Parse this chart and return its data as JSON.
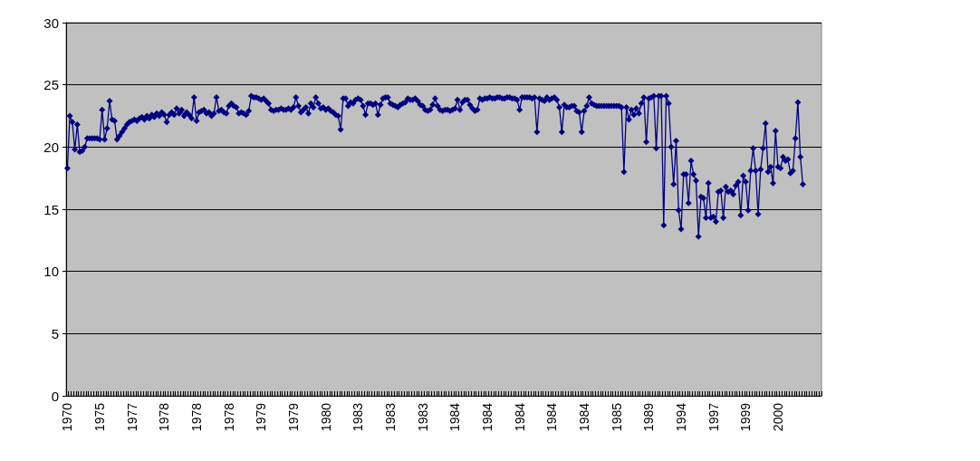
{
  "chart_data": {
    "type": "line",
    "categories": [
      "1970",
      null,
      null,
      null,
      null,
      null,
      null,
      null,
      null,
      null,
      null,
      null,
      null,
      "1975",
      null,
      null,
      null,
      null,
      null,
      null,
      null,
      null,
      null,
      null,
      null,
      null,
      "1977",
      null,
      null,
      null,
      null,
      null,
      null,
      null,
      null,
      null,
      null,
      null,
      null,
      "1978",
      null,
      null,
      null,
      null,
      null,
      null,
      null,
      null,
      null,
      null,
      null,
      null,
      "1978",
      null,
      null,
      null,
      null,
      null,
      null,
      null,
      null,
      null,
      null,
      null,
      null,
      "1978",
      null,
      null,
      null,
      null,
      null,
      null,
      null,
      null,
      null,
      null,
      null,
      null,
      "1979",
      null,
      null,
      null,
      null,
      null,
      null,
      null,
      null,
      null,
      null,
      null,
      null,
      "1979",
      null,
      null,
      null,
      null,
      null,
      null,
      null,
      null,
      null,
      null,
      null,
      null,
      "1980",
      null,
      null,
      null,
      null,
      null,
      null,
      null,
      null,
      null,
      null,
      null,
      null,
      "1983",
      null,
      null,
      null,
      null,
      null,
      null,
      null,
      null,
      null,
      null,
      null,
      null,
      "1983",
      null,
      null,
      null,
      null,
      null,
      null,
      null,
      null,
      null,
      null,
      null,
      null,
      "1983",
      null,
      null,
      null,
      null,
      null,
      null,
      null,
      null,
      null,
      null,
      null,
      null,
      "1984",
      null,
      null,
      null,
      null,
      null,
      null,
      null,
      null,
      null,
      null,
      null,
      null,
      "1984",
      null,
      null,
      null,
      null,
      null,
      null,
      null,
      null,
      null,
      null,
      null,
      null,
      "1984",
      null,
      null,
      null,
      null,
      null,
      null,
      null,
      null,
      null,
      null,
      null,
      null,
      "1984",
      null,
      null,
      null,
      null,
      null,
      null,
      null,
      null,
      null,
      null,
      null,
      null,
      "1984",
      null,
      null,
      null,
      null,
      null,
      null,
      null,
      null,
      null,
      null,
      null,
      null,
      "1985",
      null,
      null,
      null,
      null,
      null,
      null,
      null,
      null,
      null,
      null,
      null,
      null,
      "1989",
      null,
      null,
      null,
      null,
      null,
      null,
      null,
      null,
      null,
      null,
      null,
      null,
      "1994",
      null,
      null,
      null,
      null,
      null,
      null,
      null,
      null,
      null,
      null,
      null,
      null,
      "1997",
      null,
      null,
      null,
      null,
      null,
      null,
      null,
      null,
      null,
      null,
      null,
      null,
      "1999",
      null,
      null,
      null,
      null,
      null,
      null,
      null,
      null,
      null,
      null,
      null,
      null,
      "2000",
      null,
      null,
      null,
      null,
      null,
      null,
      null,
      null,
      null,
      null,
      null,
      null,
      null,
      null,
      null,
      null,
      null
    ],
    "values": [
      18.3,
      22.5,
      22.0,
      19.8,
      21.8,
      19.6,
      19.7,
      20.0,
      20.7,
      20.7,
      20.7,
      20.7,
      20.7,
      20.6,
      23.0,
      20.6,
      21.5,
      23.7,
      22.2,
      22.1,
      20.6,
      20.9,
      21.2,
      21.5,
      21.8,
      22.0,
      22.1,
      22.2,
      22.1,
      22.3,
      22.4,
      22.2,
      22.5,
      22.3,
      22.6,
      22.4,
      22.7,
      22.5,
      22.8,
      22.6,
      22.0,
      22.6,
      22.8,
      22.6,
      23.1,
      22.7,
      23.0,
      22.5,
      22.8,
      22.6,
      22.3,
      24.0,
      22.1,
      22.8,
      22.9,
      23.0,
      22.7,
      22.8,
      22.5,
      22.7,
      24.0,
      22.9,
      23.0,
      22.8,
      22.7,
      23.3,
      23.5,
      23.3,
      23.2,
      22.7,
      22.8,
      22.7,
      22.6,
      22.9,
      24.1,
      24.0,
      24.0,
      23.9,
      23.8,
      23.9,
      23.7,
      23.5,
      23.0,
      22.9,
      23.0,
      23.0,
      23.1,
      23.0,
      23.0,
      23.1,
      23.0,
      23.2,
      24.0,
      23.3,
      22.8,
      23.0,
      23.2,
      22.7,
      23.5,
      23.2,
      24.0,
      23.5,
      23.1,
      23.2,
      23.0,
      23.1,
      22.9,
      22.8,
      22.6,
      22.5,
      21.4,
      23.9,
      23.9,
      23.3,
      23.6,
      23.5,
      23.8,
      23.9,
      23.8,
      23.3,
      22.6,
      23.5,
      23.5,
      23.4,
      23.5,
      22.6,
      23.4,
      23.9,
      24.0,
      24.0,
      23.5,
      23.4,
      23.3,
      23.2,
      23.4,
      23.5,
      23.6,
      23.9,
      23.8,
      23.8,
      23.9,
      23.7,
      23.4,
      23.3,
      23.0,
      22.9,
      23.0,
      23.4,
      23.9,
      23.3,
      23.0,
      22.9,
      23.0,
      23.0,
      22.9,
      23.0,
      23.1,
      23.8,
      23.0,
      23.6,
      23.8,
      23.8,
      23.4,
      23.1,
      22.9,
      23.0,
      23.9,
      23.8,
      23.9,
      23.9,
      24.0,
      23.9,
      23.9,
      24.0,
      24.0,
      23.9,
      23.9,
      24.0,
      24.0,
      23.9,
      23.9,
      23.8,
      23.0,
      24.0,
      24.0,
      24.0,
      24.0,
      23.9,
      24.0,
      21.2,
      23.9,
      23.8,
      23.7,
      24.0,
      23.8,
      23.9,
      24.0,
      23.8,
      23.2,
      21.2,
      23.4,
      23.2,
      23.2,
      23.3,
      23.3,
      22.9,
      22.8,
      21.2,
      22.9,
      23.3,
      24.0,
      23.5,
      23.4,
      23.3,
      23.3,
      23.3,
      23.3,
      23.3,
      23.3,
      23.3,
      23.3,
      23.3,
      23.3,
      23.2,
      18.0,
      23.2,
      22.2,
      23.0,
      22.6,
      23.1,
      22.7,
      23.5,
      24.0,
      20.4,
      23.9,
      24.0,
      24.1,
      19.9,
      24.1,
      24.1,
      13.7,
      24.1,
      23.5,
      20.0,
      17.0,
      20.5,
      14.9,
      13.4,
      17.8,
      17.8,
      15.5,
      18.9,
      17.8,
      17.3,
      12.8,
      16.0,
      15.9,
      14.3,
      17.1,
      14.3,
      14.4,
      14.0,
      16.4,
      16.5,
      14.3,
      16.8,
      16.4,
      16.5,
      16.2,
      16.9,
      17.2,
      14.5,
      17.7,
      17.2,
      14.9,
      18.1,
      19.9,
      18.1,
      14.6,
      18.2,
      19.9,
      21.9,
      18.0,
      18.4,
      17.1,
      21.3,
      18.4,
      18.3,
      19.2,
      18.9,
      19.0,
      17.9,
      18.1,
      20.7,
      23.6,
      19.2,
      17.0,
      null,
      null,
      null,
      null,
      null,
      null,
      null
    ],
    "color": "#000080",
    "marker": "diamond",
    "line_style": "solid",
    "ylim": [
      0,
      30
    ],
    "yticks": [
      0,
      5,
      10,
      15,
      20,
      25,
      30
    ],
    "grid": "y"
  }
}
